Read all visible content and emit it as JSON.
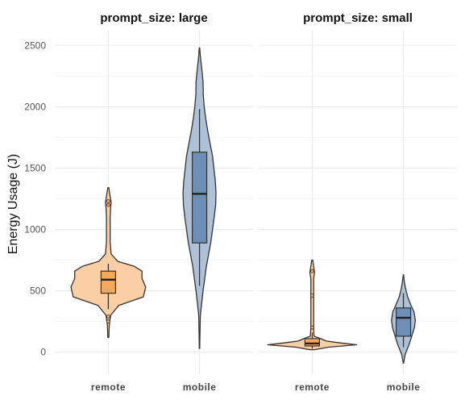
{
  "chart_data": {
    "type": "violin",
    "ylabel": "Energy Usage (J)",
    "xlabel": "",
    "ylim": [
      -180,
      2620
    ],
    "yticks": [
      0,
      500,
      1000,
      1500,
      2000,
      2500
    ],
    "grid": true,
    "legend": "none",
    "categories": [
      "remote",
      "mobile"
    ],
    "colors": {
      "remote": "#f7a85a",
      "mobile": "#6c8eb7"
    },
    "facets": [
      {
        "title": "prompt_size: large",
        "groups": [
          {
            "category": "remote",
            "violin_min": 120,
            "violin_max": 1340,
            "max_half_width_rel": 1.0,
            "profile": [
              [
                120,
                0.01
              ],
              [
                220,
                0.02
              ],
              [
                300,
                0.05
              ],
              [
                380,
                0.22
              ],
              [
                450,
                0.75
              ],
              [
                530,
                0.8
              ],
              [
                600,
                0.72
              ],
              [
                660,
                0.72
              ],
              [
                700,
                0.55
              ],
              [
                740,
                0.2
              ],
              [
                800,
                0.06
              ],
              [
                900,
                0.04
              ],
              [
                1000,
                0.04
              ],
              [
                1100,
                0.04
              ],
              [
                1180,
                0.05
              ],
              [
                1220,
                0.06
              ],
              [
                1270,
                0.04
              ],
              [
                1340,
                0.01
              ]
            ],
            "box": {
              "q1": 480,
              "median": 590,
              "q3": 660,
              "lower_whisker": 350,
              "upper_whisker": 720
            },
            "outliers": [
              1200,
              1230,
              290,
              250
            ]
          },
          {
            "category": "mobile",
            "violin_min": 30,
            "violin_max": 2480,
            "max_half_width_rel": 0.42,
            "profile": [
              [
                30,
                0.01
              ],
              [
                300,
                0.04
              ],
              [
                500,
                0.18
              ],
              [
                700,
                0.35
              ],
              [
                900,
                0.58
              ],
              [
                1100,
                0.75
              ],
              [
                1200,
                0.82
              ],
              [
                1300,
                0.84
              ],
              [
                1400,
                0.8
              ],
              [
                1500,
                0.73
              ],
              [
                1600,
                0.66
              ],
              [
                1700,
                0.54
              ],
              [
                1800,
                0.42
              ],
              [
                1900,
                0.32
              ],
              [
                2000,
                0.24
              ],
              [
                2100,
                0.19
              ],
              [
                2200,
                0.18
              ],
              [
                2300,
                0.12
              ],
              [
                2400,
                0.05
              ],
              [
                2480,
                0.01
              ]
            ],
            "box": {
              "q1": 890,
              "median": 1290,
              "q3": 1630,
              "lower_whisker": 540,
              "upper_whisker": 1980
            },
            "outliers": []
          }
        ]
      },
      {
        "title": "prompt_size: small",
        "groups": [
          {
            "category": "remote",
            "violin_min": 20,
            "violin_max": 750,
            "max_half_width_rel": 1.0,
            "profile": [
              [
                20,
                0.05
              ],
              [
                40,
                0.35
              ],
              [
                60,
                0.95
              ],
              [
                75,
                0.6
              ],
              [
                90,
                0.3
              ],
              [
                110,
                0.18
              ],
              [
                130,
                0.04
              ],
              [
                200,
                0.03
              ],
              [
                300,
                0.03
              ],
              [
                400,
                0.03
              ],
              [
                500,
                0.03
              ],
              [
                600,
                0.03
              ],
              [
                650,
                0.05
              ],
              [
                700,
                0.03
              ],
              [
                750,
                0.01
              ]
            ],
            "box": {
              "q1": 50,
              "median": 70,
              "q3": 110,
              "lower_whisker": 30,
              "upper_whisker": 160
            },
            "outliers": [
              660,
              460,
              200
            ]
          },
          {
            "category": "mobile",
            "violin_min": -90,
            "violin_max": 630,
            "max_half_width_rel": 0.3,
            "profile": [
              [
                -90,
                0.01
              ],
              [
                -20,
                0.12
              ],
              [
                60,
                0.4
              ],
              [
                140,
                0.62
              ],
              [
                200,
                0.78
              ],
              [
                260,
                0.85
              ],
              [
                330,
                0.75
              ],
              [
                380,
                0.55
              ],
              [
                450,
                0.3
              ],
              [
                520,
                0.15
              ],
              [
                580,
                0.06
              ],
              [
                630,
                0.01
              ]
            ],
            "box": {
              "q1": 130,
              "median": 280,
              "q3": 360,
              "lower_whisker": 40,
              "upper_whisker": 480
            },
            "outliers": []
          }
        ]
      }
    ]
  }
}
